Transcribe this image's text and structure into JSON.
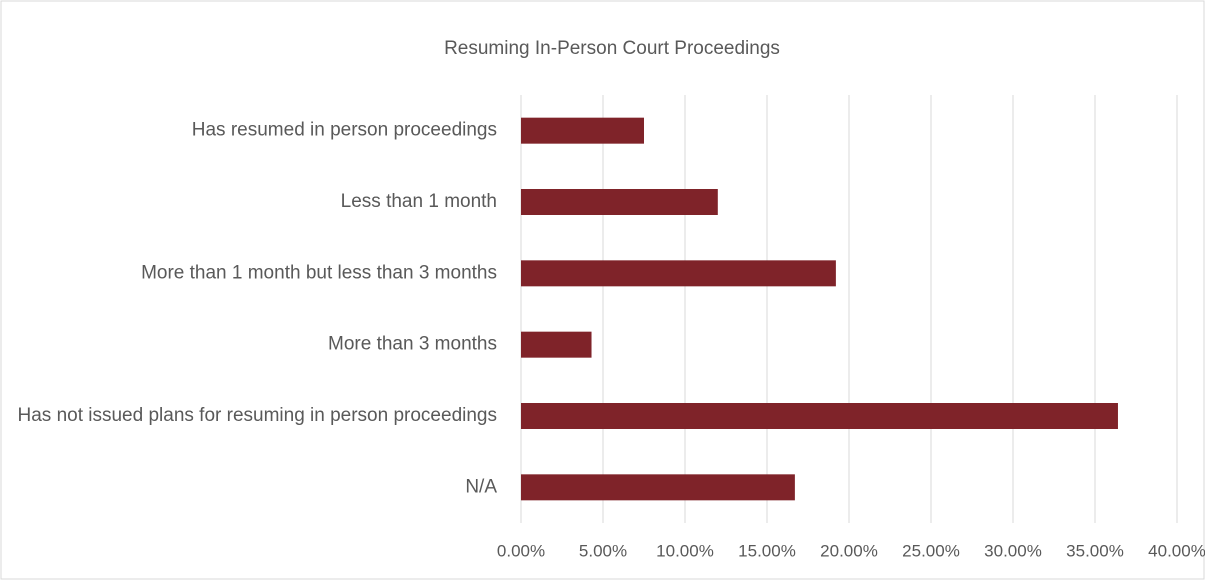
{
  "chart_data": {
    "type": "bar",
    "orientation": "horizontal",
    "title": "Resuming In-Person Court Proceedings",
    "categories": [
      "Has resumed in person proceedings",
      "Less than 1 month",
      "More than 1 month but less than 3 months",
      "More than 3 months",
      "Has not issued plans for resuming in person proceedings",
      "N/A"
    ],
    "values": [
      7.5,
      12.0,
      19.2,
      4.3,
      36.4,
      16.7
    ],
    "color": "#7f2329",
    "xlim": [
      0,
      40
    ],
    "xticks": [
      {
        "value": 0,
        "label": "0.00%"
      },
      {
        "value": 5,
        "label": "5.00%"
      },
      {
        "value": 10,
        "label": "10.00%"
      },
      {
        "value": 15,
        "label": "15.00%"
      },
      {
        "value": 20,
        "label": "20.00%"
      },
      {
        "value": 25,
        "label": "25.00%"
      },
      {
        "value": 30,
        "label": "30.00%"
      },
      {
        "value": 35,
        "label": "35.00%"
      },
      {
        "value": 40,
        "label": "40.00%"
      }
    ],
    "grid": true
  }
}
